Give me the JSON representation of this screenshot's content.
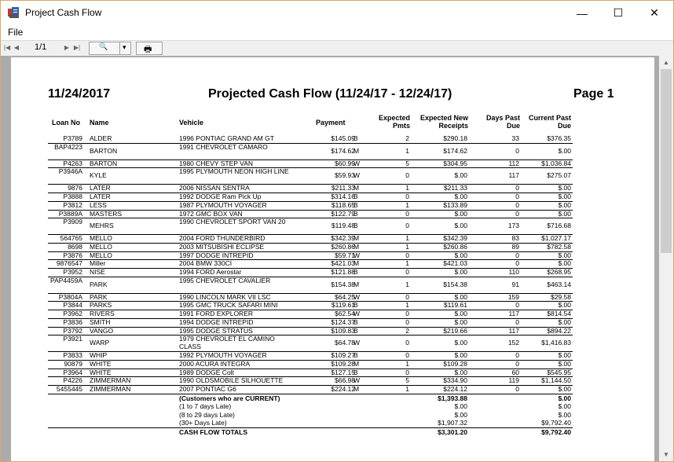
{
  "window": {
    "title": "Project Cash Flow",
    "minimize_glyph": "—",
    "maximize_glyph": "☐",
    "close_glyph": "✕"
  },
  "menu": {
    "file": "File"
  },
  "toolbar": {
    "first_glyph": "|◀",
    "prev_glyph": "◀",
    "page": "1/1",
    "next_glyph": "▶",
    "last_glyph": "▶|",
    "zoom_glyph": "🔍",
    "dropdown_glyph": "▾",
    "print_glyph": "🖶"
  },
  "report": {
    "date": "11/24/2017",
    "title": "Projected Cash Flow (11/24/17 - 12/24/17)",
    "page": "Page 1",
    "columns": {
      "loan_no": "Loan No",
      "name": "Name",
      "vehicle": "Vehicle",
      "payment": "Payment",
      "expected_pmts": "Expected Pmts",
      "expected_receipts": "Expected New Receipts",
      "days_past_due": "Days Past Due",
      "current_past_due": "Current Past Due"
    },
    "rows": [
      {
        "loan": "P3789",
        "name": "ALDER",
        "vehicle": "1996 PONTIAC GRAND AM GT",
        "payment": "$145.09",
        "freq": "B",
        "pmts": "2",
        "receipts": "$290.18",
        "days": "33",
        "past_due": "$376.35"
      },
      {
        "loan": "BAP4223",
        "name": "BARTON",
        "vehicle": "1991 CHEVROLET CAMARO",
        "payment": "$174.62",
        "freq": "M",
        "pmts": "1",
        "receipts": "$174.62",
        "days": "0",
        "past_due": "$.00"
      },
      {
        "loan": "P4263",
        "name": "BARTON",
        "vehicle": "1980 CHEVY STEP VAN",
        "payment": "$60.99",
        "freq": "W",
        "pmts": "5",
        "receipts": "$304.95",
        "days": "112",
        "past_due": "$1,036.84"
      },
      {
        "loan": "P3946A",
        "name": "KYLE",
        "vehicle": "1995 PLYMOUTH NEON HIGH LINE",
        "payment": "$59.93",
        "freq": "W",
        "pmts": "0",
        "receipts": "$.00",
        "days": "117",
        "past_due": "$275.07"
      },
      {
        "loan": "9876",
        "name": "LATER",
        "vehicle": "2006 NISSAN SENTRA",
        "payment": "$211.33",
        "freq": "M",
        "pmts": "1",
        "receipts": "$211.33",
        "days": "0",
        "past_due": "$.00"
      },
      {
        "loan": "P3888",
        "name": "LATER",
        "vehicle": "1992 DODGE Ram Pick Up",
        "payment": "$314.16",
        "freq": "B",
        "pmts": "0",
        "receipts": "$.00",
        "days": "0",
        "past_due": "$.00"
      },
      {
        "loan": "P3812",
        "name": "LESS",
        "vehicle": "1987 PLYMOUTH VOYAGER",
        "payment": "$118.65",
        "freq": "B",
        "pmts": "1",
        "receipts": "$133.89",
        "days": "0",
        "past_due": "$.00"
      },
      {
        "loan": "P3889A",
        "name": "MASTERS",
        "vehicle": "1972 GMC BOX VAN",
        "payment": "$122.79",
        "freq": "B",
        "pmts": "0",
        "receipts": "$.00",
        "days": "0",
        "past_due": "$.00"
      },
      {
        "loan": "P3909",
        "name": "MEHRS",
        "vehicle": "1990 CHEVROLET SPORT VAN 20",
        "payment": "$119.48",
        "freq": "B",
        "pmts": "0",
        "receipts": "$.00",
        "days": "173",
        "past_due": "$716.68"
      },
      {
        "loan": "564765",
        "name": "MELLO",
        "vehicle": "2004 FORD THUNDERBIRD",
        "payment": "$342.39",
        "freq": "M",
        "pmts": "1",
        "receipts": "$342.39",
        "days": "83",
        "past_due": "$1,027.17"
      },
      {
        "loan": "8698",
        "name": "MELLO",
        "vehicle": "2003 MITSUBISHI ECLIPSE",
        "payment": "$260.86",
        "freq": "M",
        "pmts": "1",
        "receipts": "$260.86",
        "days": "89",
        "past_due": "$782.58"
      },
      {
        "loan": "P3876",
        "name": "MELLO",
        "vehicle": "1997 DODGE INTREPID",
        "payment": "$59.71",
        "freq": "W",
        "pmts": "0",
        "receipts": "$.00",
        "days": "0",
        "past_due": "$.00"
      },
      {
        "loan": "9876547",
        "name": "Miller",
        "vehicle": "2004 BMW 330CI",
        "payment": "$421.03",
        "freq": "M",
        "pmts": "1",
        "receipts": "$421.03",
        "days": "0",
        "past_due": "$.00"
      },
      {
        "loan": "P3952",
        "name": "NISE",
        "vehicle": "1994 FORD Aerostar",
        "payment": "$121.88",
        "freq": "B",
        "pmts": "0",
        "receipts": "$.00",
        "days": "110",
        "past_due": "$268.95"
      },
      {
        "loan": "PAP4459A",
        "name": "PARK",
        "vehicle": "1995 CHEVROLET CAVALIER",
        "payment": "$154.38",
        "freq": "M",
        "pmts": "1",
        "receipts": "$154.38",
        "days": "91",
        "past_due": "$463.14"
      },
      {
        "loan": "P3804A",
        "name": "PARK",
        "vehicle": "1990 LINCOLN MARK VII LSC",
        "payment": "$64.25",
        "freq": "W",
        "pmts": "0",
        "receipts": "$.00",
        "days": "159",
        "past_due": "$29.58"
      },
      {
        "loan": "P3844",
        "name": "PARKS",
        "vehicle": "1995 GMC TRUCK SAFARI MINI",
        "payment": "$119.61",
        "freq": "B",
        "pmts": "1",
        "receipts": "$119.61",
        "days": "0",
        "past_due": "$.00"
      },
      {
        "loan": "P3962",
        "name": "RIVERS",
        "vehicle": "1991 FORD EXPLORER",
        "payment": "$62.54",
        "freq": "W",
        "pmts": "0",
        "receipts": "$.00",
        "days": "117",
        "past_due": "$814.54"
      },
      {
        "loan": "P3836",
        "name": "SMITH",
        "vehicle": "1994 DODGE INTREPID",
        "payment": "$124.37",
        "freq": "B",
        "pmts": "0",
        "receipts": "$.00",
        "days": "0",
        "past_due": "$.00"
      },
      {
        "loan": "P3792",
        "name": "VANGO",
        "vehicle": "1995 DODGE STRATUS",
        "payment": "$109.83",
        "freq": "B",
        "pmts": "2",
        "receipts": "$219.66",
        "days": "117",
        "past_due": "$894.22"
      },
      {
        "loan": "P3921",
        "name": "WARP",
        "vehicle": "1979 CHEVROLET EL CAMINO CLASS",
        "payment": "$64.78",
        "freq": "W",
        "pmts": "0",
        "receipts": "$.00",
        "days": "152",
        "past_due": "$1,416.83"
      },
      {
        "loan": "P3833",
        "name": "WHIP",
        "vehicle": "1992 PLYMOUTH VOYAGER",
        "payment": "$109.27",
        "freq": "B",
        "pmts": "0",
        "receipts": "$.00",
        "days": "0",
        "past_due": "$.00"
      },
      {
        "loan": "90879",
        "name": "WHITE",
        "vehicle": "2000 ACURA INTEGRA",
        "payment": "$109.28",
        "freq": "M",
        "pmts": "1",
        "receipts": "$109.28",
        "days": "0",
        "past_due": "$.00"
      },
      {
        "loan": "P3964",
        "name": "WHITE",
        "vehicle": "1989 DODGE Colt",
        "payment": "$127.15",
        "freq": "B",
        "pmts": "0",
        "receipts": "$.00",
        "days": "60",
        "past_due": "$545.95"
      },
      {
        "loan": "P4226",
        "name": "ZIMMERMAN",
        "vehicle": "1990 OLDSMOBILE SILHOUETTE",
        "payment": "$66.98",
        "freq": "W",
        "pmts": "5",
        "receipts": "$334.90",
        "days": "119",
        "past_due": "$1,144.50"
      },
      {
        "loan": "5455445",
        "name": "ZIMMERMAN",
        "vehicle": "2007 PONTIAC G6",
        "payment": "$224.12",
        "freq": "M",
        "pmts": "1",
        "receipts": "$224.12",
        "days": "0",
        "past_due": "$.00"
      }
    ],
    "summary": [
      {
        "label": "(Customers who are CURRENT)",
        "receipts": "$1,393.88",
        "past_due": "$.00",
        "bold": true
      },
      {
        "label": "(1 to 7 days Late)",
        "receipts": "$.00",
        "past_due": "$.00",
        "bold": false
      },
      {
        "label": "(8 to 29 days Late)",
        "receipts": "$.00",
        "past_due": "$.00",
        "bold": false
      },
      {
        "label": "(30+ Days Late)",
        "receipts": "$1,907.32",
        "past_due": "$9,792.40",
        "bold": false
      }
    ],
    "totals": {
      "label": "CASH FLOW TOTALS",
      "receipts": "$3,301.20",
      "past_due": "$9,792.40"
    }
  }
}
